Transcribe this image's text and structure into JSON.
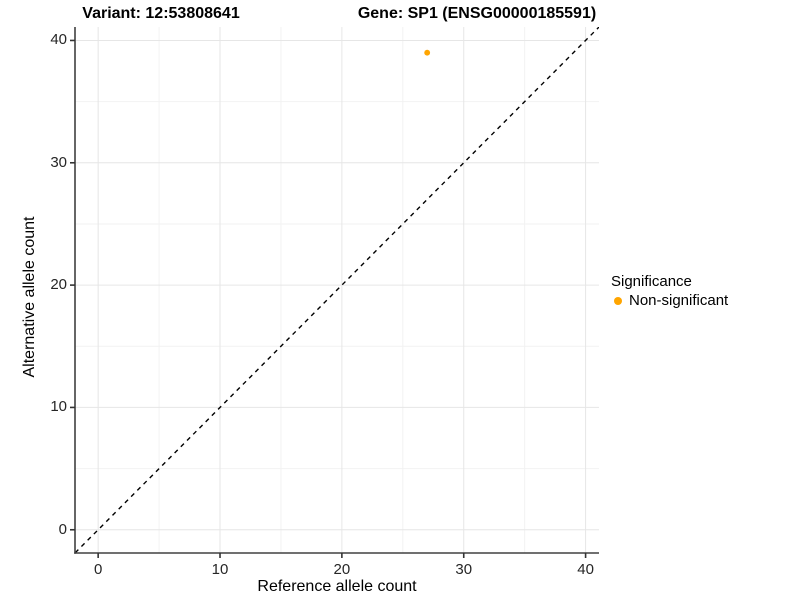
{
  "titles": {
    "left": "Variant: 12:53808641",
    "right": "Gene: SP1 (ENSG00000185591)"
  },
  "chart_data": {
    "type": "scatter",
    "title_left": "Variant: 12:53808641",
    "title_right": "Gene: SP1 (ENSG00000185591)",
    "xlabel": "Reference allele count",
    "ylabel": "Alternative allele count",
    "xlim": [
      -1.9,
      41.1
    ],
    "ylim": [
      -1.9,
      41.1
    ],
    "xticks": [
      0,
      10,
      20,
      30,
      40
    ],
    "yticks": [
      0,
      10,
      20,
      30,
      40
    ],
    "x_minor": [
      5,
      15,
      25,
      35
    ],
    "y_minor": [
      5,
      15,
      25,
      35
    ],
    "grid": true,
    "legend_position": "right",
    "series": [
      {
        "name": "Non-significant",
        "color": "#FFA500",
        "points": [
          {
            "x": 27,
            "y": 39
          }
        ]
      }
    ],
    "identity_line": {
      "show": true,
      "slope": 1,
      "intercept": 0,
      "style": "dashed",
      "color": "#000000"
    }
  },
  "legend": {
    "title": "Significance",
    "items": [
      {
        "label": "Non-significant",
        "color": "#FFA500"
      }
    ]
  },
  "colors": {
    "point": "#FFA500",
    "axis_line": "#404040",
    "tick_mark": "#333333",
    "tick_label": "#262626",
    "grid_major": "#e6e6e6",
    "grid_minor": "#f2f2f2",
    "background": "#ffffff"
  }
}
